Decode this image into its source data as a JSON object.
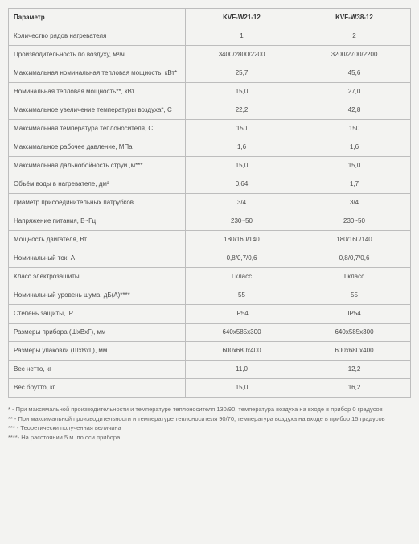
{
  "table": {
    "param_header": "Параметр",
    "model_a": "KVF-W21-12",
    "model_b": "KVF-W38-12",
    "rows": [
      {
        "label": "Количество рядов нагревателя",
        "a": "1",
        "b": "2"
      },
      {
        "label": "Производительность по воздуху, м³/ч",
        "a": "3400/2800/2200",
        "b": "3200/2700/2200"
      },
      {
        "label": "Максимальная номинальная тепловая мощность, кВт*",
        "a": "25,7",
        "b": "45,6"
      },
      {
        "label": "Номинальная тепловая мощность**, кВт",
        "a": "15,0",
        "b": "27,0"
      },
      {
        "label": "Максимальное увеличение температуры воздуха*, С",
        "a": "22,2",
        "b": "42,8"
      },
      {
        "label": "Максимальная температура теплоносителя, С",
        "a": "150",
        "b": "150"
      },
      {
        "label": "Максимальное рабочее давление, МПа",
        "a": "1,6",
        "b": "1,6"
      },
      {
        "label": "Максимальная дальнобойность струи ,м***",
        "a": "15,0",
        "b": "15,0"
      },
      {
        "label": "Объём воды в нагревателе, дм³",
        "a": "0,64",
        "b": "1,7"
      },
      {
        "label": "Диаметр присоединительных патрубков",
        "a": "3/4",
        "b": "3/4"
      },
      {
        "label": "Напряжение питания, В~Гц",
        "a": "230~50",
        "b": "230~50"
      },
      {
        "label": "Мощность двигателя, Вт",
        "a": "180/160/140",
        "b": "180/160/140"
      },
      {
        "label": "Номинальный ток, А",
        "a": "0,8/0,7/0,6",
        "b": "0,8/0,7/0,6"
      },
      {
        "label": "Класс электрозащиты",
        "a": "I класс",
        "b": "I класс"
      },
      {
        "label": "Номинальный уровень шума, дБ(А)****",
        "a": "55",
        "b": "55"
      },
      {
        "label": "Степень защиты, IP",
        "a": "IP54",
        "b": "IP54"
      },
      {
        "label": "Размеры прибора (ШхВхГ), мм",
        "a": "640х585х300",
        "b": "640х585х300"
      },
      {
        "label": "Размеры упаковки (ШхВхГ), мм",
        "a": "600х680х400",
        "b": "600х680х400"
      },
      {
        "label": "Вес нетто, кг",
        "a": "11,0",
        "b": "12,2"
      },
      {
        "label": "Вес брутто, кг",
        "a": "15,0",
        "b": "16,2"
      }
    ]
  },
  "footnotes": {
    "n1": "* - При максимальной производительности и температуре теплоносителя 130/90, температура воздуха на входе в прибор 0 градусов",
    "n2": "** - При максимальной производительности и температуре теплоносителя 90/70, температура воздуха на входе в прибор 15 градусов",
    "n3": "*** - Теоретически полученная величина",
    "n4": "****- На расстоянии 5 м. по оси прибора"
  }
}
